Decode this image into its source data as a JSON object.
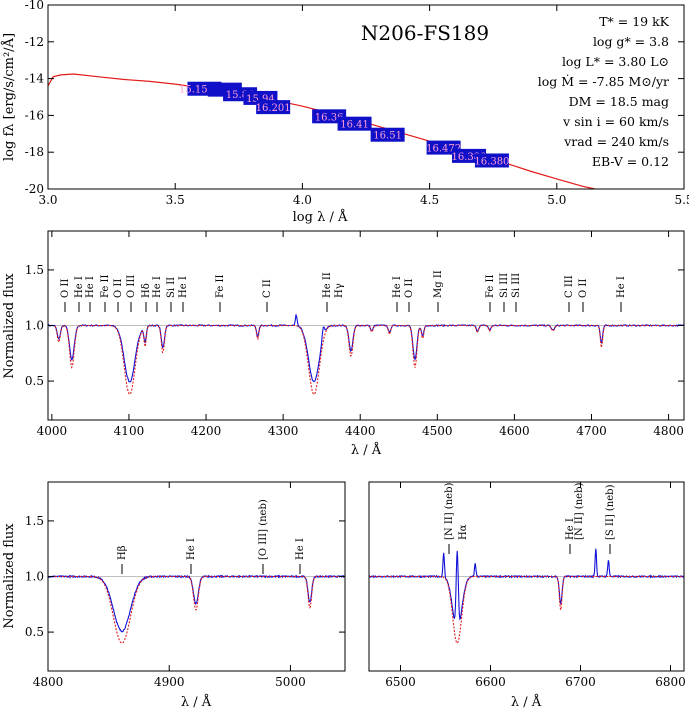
{
  "sed": {
    "title": "N206-FS189",
    "ylabel": "log fλ [erg/s/cm²/Å]",
    "xlabel": "log λ / Å",
    "xticks": [
      "3.0",
      "3.5",
      "4.0",
      "4.5",
      "5.0",
      "5.5"
    ],
    "yticks": [
      "-10",
      "-12",
      "-14",
      "-16",
      "-18",
      "-20"
    ],
    "params": [
      "T* = 19 kK",
      "log g* = 3.8",
      "log L* = 3.80 L⊙",
      "log Ṁ = -7.85 M⊙/yr",
      "DM = 18.5 mag",
      "v sin i = 60 km/s",
      "vrad = 240 km/s",
      "EB-V = 0.12"
    ],
    "photometry": [
      "15.15.727",
      "15.84",
      "15.94",
      "16.201",
      "16.36",
      "16.41",
      "16.51",
      "16.472",
      "16.380",
      "16.380"
    ]
  },
  "mid": {
    "ylabel": "Normalized flux",
    "xlabel": "λ / Å",
    "xticks": [
      "4000",
      "4100",
      "4200",
      "4300",
      "4400",
      "4500",
      "4600",
      "4700",
      "4800"
    ],
    "yticks": [
      "1.5",
      "1.0",
      "0.5"
    ],
    "idents": [
      "O II",
      "He I",
      "He I",
      "Fe II",
      "O II",
      "O III",
      "Hδ",
      "He I",
      "Si II",
      "He I",
      "Fe II",
      "C II",
      "He II",
      "Hγ",
      "He I",
      "O II",
      "Mg II",
      "Fe II",
      "Si III",
      "Si III",
      "C III",
      "O II",
      "He I"
    ]
  },
  "left": {
    "ylabel": "Normalized flux",
    "xlabel": "λ / Å",
    "xticks": [
      "4800",
      "4900",
      "5000"
    ],
    "yticks": [
      "1.5",
      "1.0",
      "0.5"
    ],
    "idents": [
      "Hβ",
      "He I",
      "[O III] (neb)",
      "He I"
    ]
  },
  "right": {
    "xlabel": "λ / Å",
    "xticks": [
      "6500",
      "6600",
      "6700",
      "6800"
    ],
    "idents": [
      "[N II] (neb)",
      "Hα",
      "He I",
      "[N II] (neb)",
      "[S II] (neb)"
    ]
  },
  "chart_data": [
    {
      "type": "line",
      "title": "N206-FS189",
      "xlabel": "log λ / Å",
      "ylabel": "log fλ [erg/s/cm²/Å]",
      "xlim": [
        3.0,
        5.5
      ],
      "ylim": [
        -20,
        -10
      ],
      "series": [
        {
          "x": [
            3.0,
            3.02,
            3.05,
            3.1,
            3.2,
            3.3,
            3.4,
            3.5,
            3.6,
            3.7,
            3.8,
            3.9,
            4.0,
            4.1,
            4.2,
            4.3,
            4.4,
            4.5,
            4.6,
            4.7,
            4.8,
            4.9,
            5.0,
            5.1,
            5.15
          ],
          "y": [
            -14.4,
            -13.9,
            -13.8,
            -13.75,
            -13.9,
            -14.05,
            -14.15,
            -14.3,
            -14.5,
            -14.7,
            -14.9,
            -15.2,
            -15.5,
            -15.85,
            -16.2,
            -16.6,
            -17.0,
            -17.4,
            -17.8,
            -18.2,
            -18.6,
            -19.05,
            -19.45,
            -19.85,
            -20.0
          ]
        }
      ],
      "photometry_boxes": [
        {
          "x": 3.56,
          "y": -14.55,
          "label": "15.15.727"
        },
        {
          "x": 3.64,
          "y": -14.6,
          "label": ""
        },
        {
          "x": 3.7,
          "y": -14.85,
          "label": "15.84"
        },
        {
          "x": 3.78,
          "y": -15.05,
          "label": "15.94"
        },
        {
          "x": 3.83,
          "y": -15.55,
          "label": "16.201"
        },
        {
          "x": 4.05,
          "y": -16.05,
          "label": "16.36"
        },
        {
          "x": 4.15,
          "y": -16.45,
          "label": "16.41"
        },
        {
          "x": 4.28,
          "y": -17.05,
          "label": "16.51"
        },
        {
          "x": 4.5,
          "y": -17.75,
          "label": "16.472"
        },
        {
          "x": 4.6,
          "y": -18.2,
          "label": "16.380"
        },
        {
          "x": 4.69,
          "y": -18.45,
          "label": "16.380"
        }
      ]
    },
    {
      "type": "line",
      "xlabel": "λ / Å",
      "ylabel": "Normalized flux",
      "xlim": [
        3995,
        4820
      ],
      "ylim": [
        0.15,
        1.85
      ],
      "lines": [
        {
          "x": 4009,
          "depth": 0.15,
          "w": 2
        },
        {
          "x": 4026,
          "depth": 0.38,
          "w": 3
        },
        {
          "x": 4101,
          "depth": 0.62,
          "w": 7
        },
        {
          "x": 4121,
          "depth": 0.18,
          "w": 1.5
        },
        {
          "x": 4144,
          "depth": 0.25,
          "w": 2
        },
        {
          "x": 4267,
          "depth": 0.12,
          "w": 1.5
        },
        {
          "x": 4340,
          "depth": 0.62,
          "w": 7
        },
        {
          "x": 4388,
          "depth": 0.28,
          "w": 2.5
        },
        {
          "x": 4415,
          "depth": 0.06,
          "w": 1.5
        },
        {
          "x": 4438,
          "depth": 0.08,
          "w": 1.5
        },
        {
          "x": 4471,
          "depth": 0.38,
          "w": 2.5
        },
        {
          "x": 4481,
          "depth": 0.12,
          "w": 1.5
        },
        {
          "x": 4552,
          "depth": 0.06,
          "w": 1.5
        },
        {
          "x": 4568,
          "depth": 0.05,
          "w": 1.5
        },
        {
          "x": 4650,
          "depth": 0.05,
          "w": 2
        },
        {
          "x": 4713,
          "depth": 0.2,
          "w": 1.5
        }
      ],
      "emission": [
        {
          "x": 4317,
          "h": 0.1,
          "w": 1
        },
        {
          "x": 4352,
          "h": 0.1,
          "w": 1.5
        }
      ]
    },
    {
      "type": "line",
      "xlabel": "λ / Å",
      "ylabel": "Normalized flux",
      "xlim": [
        4800,
        5045
      ],
      "ylim": [
        0.15,
        1.85
      ],
      "lines": [
        {
          "x": 4861,
          "depth": 0.6,
          "w": 7
        },
        {
          "x": 4922,
          "depth": 0.3,
          "w": 2
        },
        {
          "x": 5016,
          "depth": 0.28,
          "w": 1.5
        }
      ],
      "emission": []
    },
    {
      "type": "line",
      "xlabel": "λ / Å",
      "xlim": [
        6465,
        6815
      ],
      "ylim": [
        0.15,
        1.85
      ],
      "lines": [
        {
          "x": 6563,
          "depth": 0.6,
          "w": 5
        },
        {
          "x": 6678,
          "depth": 0.3,
          "w": 1.5
        }
      ],
      "emission": [
        {
          "x": 6548,
          "h": 0.22,
          "w": 0.8
        },
        {
          "x": 6563,
          "h": 0.72,
          "w": 1.2
        },
        {
          "x": 6583,
          "h": 0.12,
          "w": 0.8
        },
        {
          "x": 6717,
          "h": 0.25,
          "w": 0.8
        },
        {
          "x": 6731,
          "h": 0.15,
          "w": 0.8
        }
      ]
    }
  ]
}
